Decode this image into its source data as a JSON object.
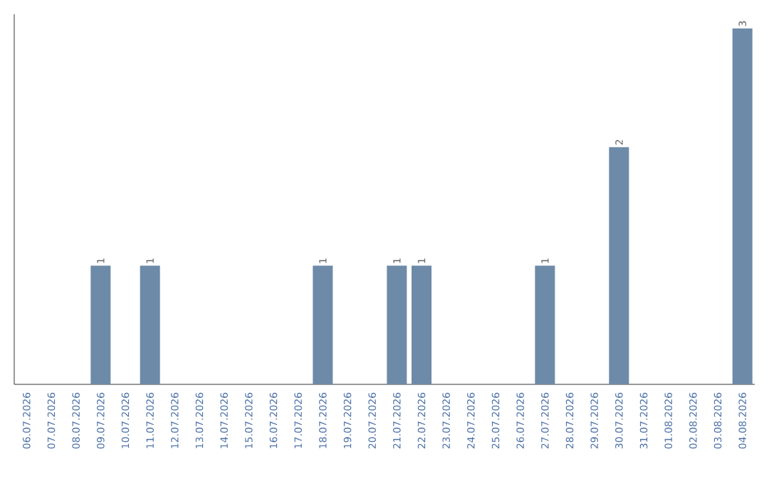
{
  "chart_data": {
    "type": "bar",
    "categories": [
      "06.07.2026",
      "07.07.2026",
      "08.07.2026",
      "09.07.2026",
      "10.07.2026",
      "11.07.2026",
      "12.07.2026",
      "13.07.2026",
      "14.07.2026",
      "15.07.2026",
      "16.07.2026",
      "17.07.2026",
      "18.07.2026",
      "19.07.2026",
      "20.07.2026",
      "21.07.2026",
      "22.07.2026",
      "23.07.2026",
      "24.07.2026",
      "25.07.2026",
      "26.07.2026",
      "27.07.2026",
      "28.07.2026",
      "29.07.2026",
      "30.07.2026",
      "31.07.2026",
      "01.08.2026",
      "02.08.2026",
      "03.08.2026",
      "04.08.2026"
    ],
    "values": [
      0,
      0,
      0,
      1,
      0,
      1,
      0,
      0,
      0,
      0,
      0,
      0,
      1,
      0,
      0,
      1,
      1,
      0,
      0,
      0,
      0,
      1,
      0,
      0,
      2,
      0,
      0,
      0,
      0,
      3
    ],
    "value_labels": [
      null,
      null,
      null,
      "1",
      null,
      "1",
      null,
      null,
      null,
      null,
      null,
      null,
      "1",
      null,
      null,
      "1",
      "1",
      null,
      null,
      null,
      null,
      "1",
      null,
      null,
      "2",
      null,
      null,
      null,
      null,
      "3"
    ],
    "color": "#6d8aa8"
  }
}
